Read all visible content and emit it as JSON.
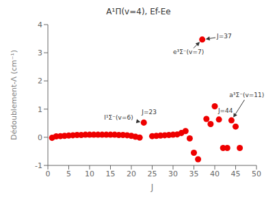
{
  "chart_data": {
    "type": "scatter",
    "title": "A¹Π(v=4), Ef-Ee",
    "xlabel": "J",
    "ylabel": "Dédoublement-Λ (cm⁻¹)",
    "xlim": [
      0,
      50
    ],
    "ylim": [
      -1.0,
      4.0
    ],
    "xticks": [
      0,
      5,
      10,
      15,
      20,
      25,
      30,
      35,
      40,
      45,
      50
    ],
    "yticks": [
      -1,
      0,
      1,
      2,
      3,
      4
    ],
    "color": "#ee0000",
    "grid": false,
    "x": [
      1,
      2,
      3,
      4,
      5,
      6,
      7,
      8,
      9,
      10,
      11,
      12,
      13,
      14,
      15,
      16,
      17,
      18,
      19,
      20,
      21,
      22,
      23,
      25,
      26,
      27,
      28,
      29,
      30,
      31,
      32,
      33,
      34,
      35,
      36,
      37,
      38,
      39,
      40,
      41,
      42,
      43,
      44,
      45,
      46
    ],
    "values": [
      -0.02,
      0.03,
      0.04,
      0.05,
      0.06,
      0.07,
      0.08,
      0.08,
      0.09,
      0.09,
      0.09,
      0.09,
      0.09,
      0.09,
      0.09,
      0.09,
      0.08,
      0.08,
      0.07,
      0.05,
      0.02,
      -0.01,
      0.52,
      0.04,
      0.05,
      0.06,
      0.07,
      0.08,
      0.09,
      0.1,
      0.15,
      0.22,
      -0.04,
      -0.55,
      -0.78,
      3.47,
      0.65,
      0.47,
      1.1,
      0.63,
      -0.38,
      -0.38,
      0.6,
      0.38,
      -0.38
    ],
    "annotations": [
      {
        "text": "J=37",
        "x": 37,
        "y": 3.47,
        "text_x": 40.5,
        "text_y": 3.52,
        "arrow": true
      },
      {
        "text": "e³Σ⁻(v=7)",
        "x": 37,
        "y": 3.47,
        "text_x": 30.0,
        "text_y": 2.95,
        "arrow": true
      },
      {
        "text": "J=23",
        "x": 23,
        "y": 0.52,
        "text_x": 22.5,
        "text_y": 0.82,
        "arrow": false
      },
      {
        "text": "I¹Σ⁻(v=6)",
        "x": 23,
        "y": 0.52,
        "text_x": 13.5,
        "text_y": 0.62,
        "arrow": true
      },
      {
        "text": "a³Σ⁻(v=11)",
        "x": 44,
        "y": 0.6,
        "text_x": 43.5,
        "text_y": 1.42,
        "arrow": true
      },
      {
        "text": "J=44",
        "x": 44,
        "y": 0.6,
        "text_x": 40.8,
        "text_y": 0.87,
        "arrow": false
      }
    ]
  }
}
